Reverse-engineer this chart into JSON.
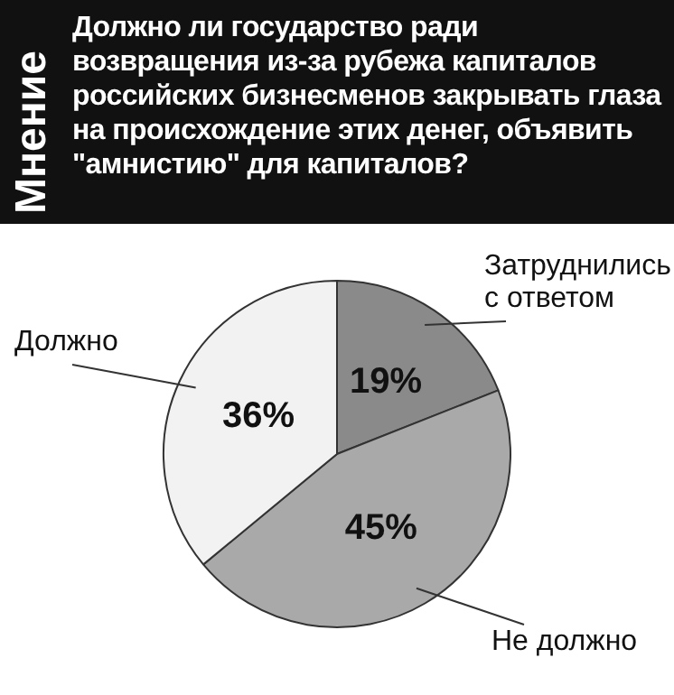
{
  "chart_data": {
    "type": "pie",
    "subtitle": "Мнение",
    "title": "Должно ли государство ради возвращения из-за рубежа капиталов российских бизнесменов закрывать глаза на происхождение этих денег, объявить \"амнистию\" для капиталов?",
    "categories": [
      "Должно",
      "Не должно",
      "Затруднились с ответом"
    ],
    "values": [
      36,
      45,
      19
    ],
    "colors": [
      "#f2f2f2",
      "#a9a9a9",
      "#8a8a8a"
    ],
    "value_labels": [
      "36%",
      "45%",
      "19%"
    ],
    "legend": false
  }
}
